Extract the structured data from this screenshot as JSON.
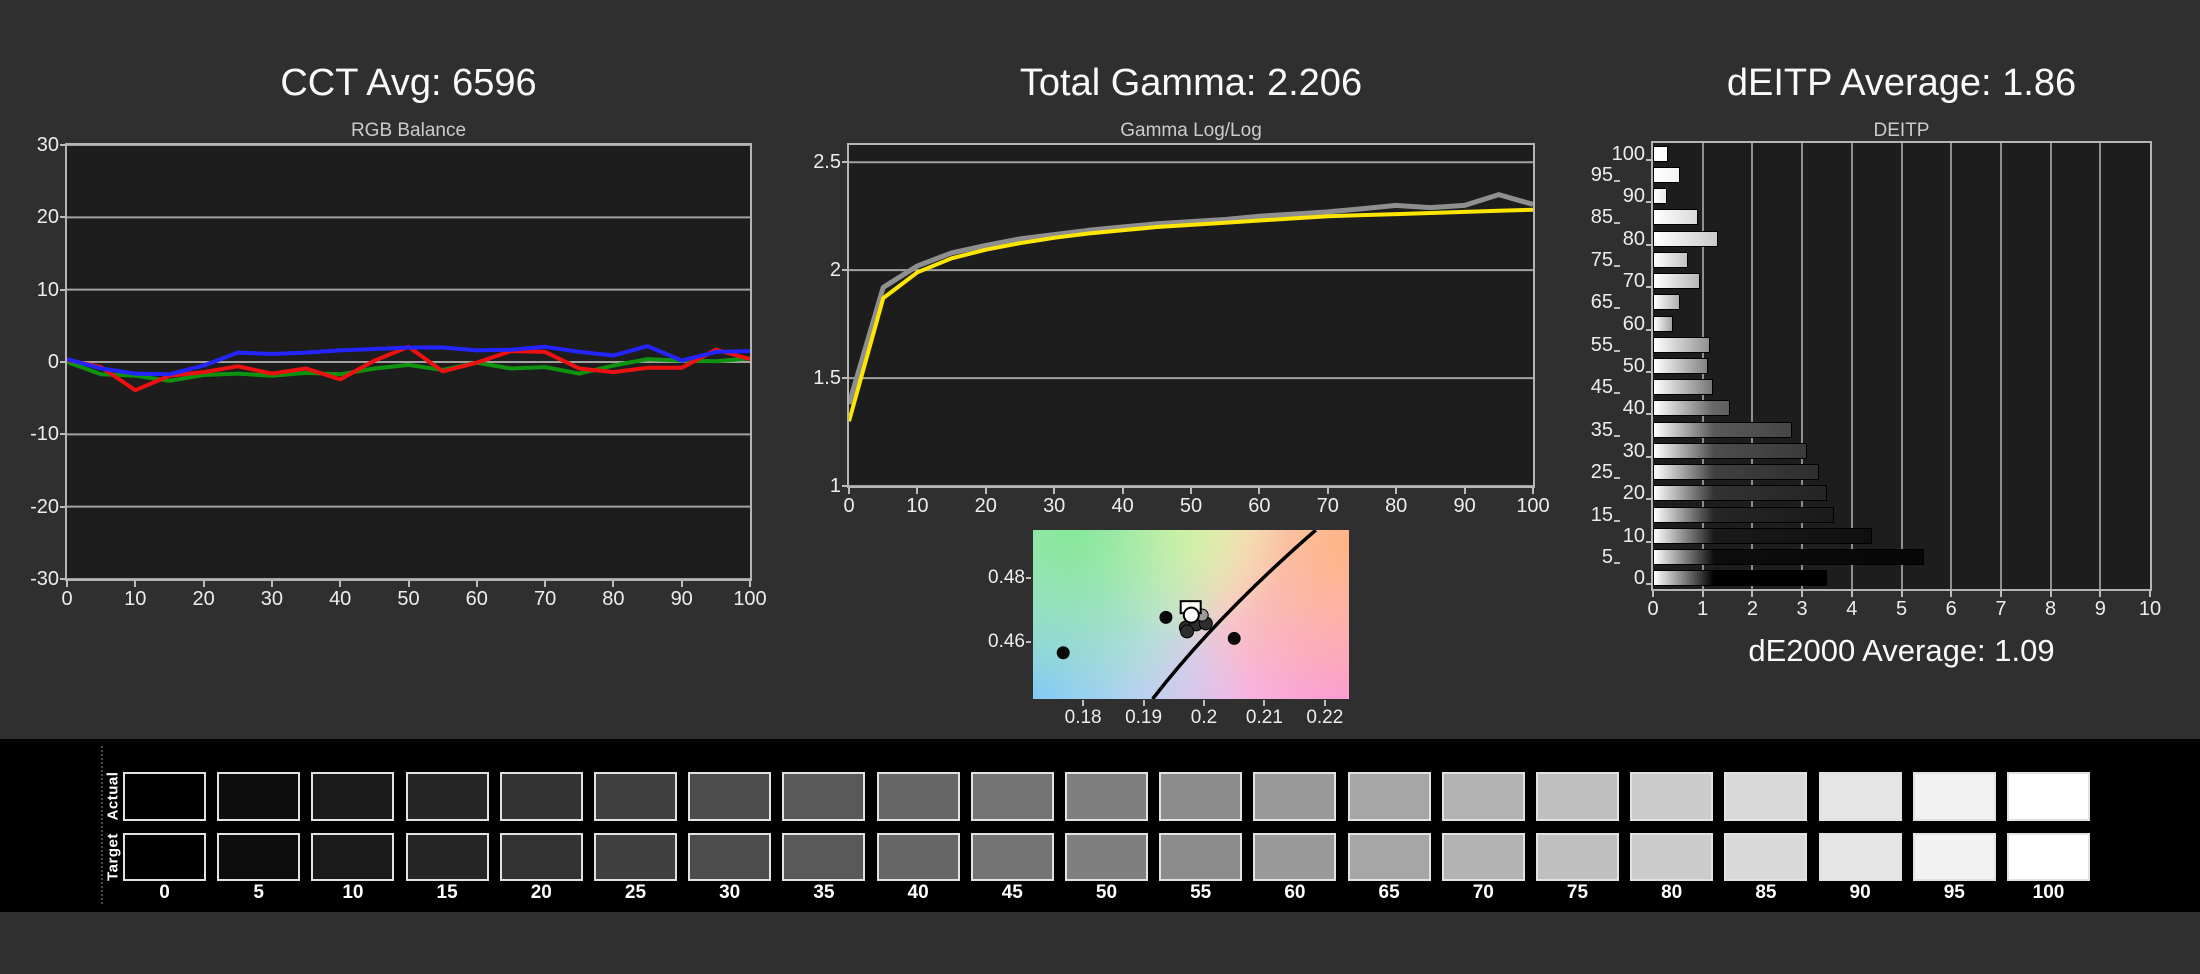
{
  "colors": {
    "background": "#2f2f2f",
    "plot_background": "#1d1d1d",
    "strip_background": "#000000",
    "grid": "#a2a2a2",
    "axis_text": "#ededed",
    "red_line": "#ee1111",
    "green_line": "#0d930d",
    "blue_line": "#2424ff",
    "target_yellow": "#ffe600",
    "measured_gray": "#8f8f8f"
  },
  "chart_data": [
    {
      "type": "line",
      "id": "rgb_balance",
      "title": "CCT Avg: 6596",
      "subtitle": "RGB Balance",
      "x": [
        0,
        5,
        10,
        15,
        20,
        25,
        30,
        35,
        40,
        45,
        50,
        55,
        60,
        65,
        70,
        75,
        80,
        85,
        90,
        95,
        100
      ],
      "series": [
        {
          "name": "Green",
          "color": "#0d930d",
          "width": 4,
          "values": [
            0.0,
            -1.7,
            -1.9,
            -2.6,
            -1.8,
            -1.6,
            -1.9,
            -1.5,
            -1.7,
            -0.9,
            -0.4,
            -1.1,
            -0.1,
            -0.9,
            -0.7,
            -1.6,
            -0.5,
            0.4,
            0.2,
            0.1,
            0.5
          ]
        },
        {
          "name": "Red",
          "color": "#ee1111",
          "width": 4,
          "values": [
            0.3,
            -0.7,
            -3.9,
            -1.9,
            -1.4,
            -0.6,
            -1.6,
            -0.9,
            -2.4,
            0.2,
            2.1,
            -1.3,
            -0.1,
            1.5,
            1.4,
            -0.9,
            -1.4,
            -0.8,
            -0.8,
            1.7,
            0.4
          ]
        },
        {
          "name": "Blue",
          "color": "#2424ff",
          "width": 4,
          "values": [
            0.4,
            -0.9,
            -1.6,
            -1.7,
            -0.5,
            1.3,
            1.1,
            1.3,
            1.6,
            1.8,
            2.0,
            2.0,
            1.6,
            1.7,
            2.1,
            1.4,
            0.9,
            2.2,
            0.2,
            1.4,
            1.5
          ]
        }
      ],
      "xlim": [
        0,
        100
      ],
      "ylim": [
        -30,
        30
      ],
      "yticks": [
        30,
        20,
        10,
        0,
        -10,
        -20,
        -30
      ],
      "xticks": [
        0,
        10,
        20,
        30,
        40,
        50,
        60,
        70,
        80,
        90,
        100
      ],
      "grid": "horizontal"
    },
    {
      "type": "line",
      "id": "gamma_loglog",
      "title": "Total Gamma: 2.206",
      "subtitle": "Gamma Log/Log",
      "x": [
        0,
        5,
        10,
        15,
        20,
        25,
        30,
        35,
        40,
        45,
        50,
        55,
        60,
        65,
        70,
        75,
        80,
        85,
        90,
        95,
        100
      ],
      "series": [
        {
          "name": "Measured",
          "color": "#8f8f8f",
          "width": 5,
          "values": [
            1.38,
            1.92,
            2.02,
            2.08,
            2.115,
            2.145,
            2.165,
            2.185,
            2.2,
            2.215,
            2.225,
            2.235,
            2.25,
            2.26,
            2.27,
            2.285,
            2.3,
            2.29,
            2.3,
            2.35,
            2.305
          ]
        },
        {
          "name": "Target",
          "color": "#ffe600",
          "width": 4,
          "values": [
            1.3,
            1.87,
            1.99,
            2.055,
            2.095,
            2.125,
            2.15,
            2.17,
            2.185,
            2.2,
            2.21,
            2.22,
            2.23,
            2.24,
            2.25,
            2.255,
            2.26,
            2.265,
            2.27,
            2.275,
            2.28
          ]
        }
      ],
      "xlim": [
        0,
        100
      ],
      "ylim": [
        1,
        2.58
      ],
      "yticks": [
        2.5,
        2,
        1.5,
        1
      ],
      "xticks": [
        0,
        10,
        20,
        30,
        40,
        50,
        60,
        70,
        80,
        90,
        100
      ],
      "grid": "horizontal"
    },
    {
      "type": "scatter",
      "id": "cie_chromaticity_detail",
      "xlim": [
        0.1717,
        0.224
      ],
      "ylim": [
        0.442,
        0.495
      ],
      "xticks": [
        0.18,
        0.19,
        0.2,
        0.21,
        0.22
      ],
      "yticks": [
        0.48,
        0.46
      ],
      "locus": [
        [
          0.1915,
          0.442
        ],
        [
          0.2019,
          0.4676
        ],
        [
          0.2185,
          0.495
        ]
      ],
      "points": [
        [
          0.1767,
          0.4565
        ],
        [
          0.1937,
          0.4676
        ],
        [
          0.205,
          0.461
        ]
      ],
      "cluster": {
        "dark_dots": [
          [
            0.197,
            0.4644
          ],
          [
            0.1987,
            0.4654
          ],
          [
            0.1972,
            0.4632
          ],
          [
            0.2003,
            0.4657
          ]
        ],
        "gray_dots": [
          [
            0.1997,
            0.4683
          ]
        ],
        "white_dot": [
          0.1979,
          0.4683
        ],
        "target_box": [
          0.1978,
          0.4708
        ]
      }
    },
    {
      "type": "bar",
      "id": "deitp",
      "orientation": "horizontal",
      "title": "dEITP Average: 1.86",
      "subtitle": "DEITP",
      "categories": [
        100,
        95,
        90,
        85,
        80,
        75,
        70,
        65,
        60,
        55,
        50,
        45,
        40,
        35,
        30,
        25,
        20,
        15,
        10,
        5,
        0
      ],
      "values": [
        0.3,
        0.55,
        0.28,
        0.9,
        1.3,
        0.7,
        0.95,
        0.55,
        0.4,
        1.15,
        1.1,
        1.2,
        1.55,
        2.8,
        3.1,
        3.35,
        3.5,
        3.65,
        4.4,
        5.45,
        3.5
      ],
      "xlim": [
        0,
        10
      ],
      "xticks": [
        0,
        1,
        2,
        3,
        4,
        5,
        6,
        7,
        8,
        9,
        10
      ],
      "footer": "dE2000 Average: 1.09"
    },
    {
      "type": "table",
      "id": "grayscale_ramp",
      "rows": [
        "Actual",
        "Target"
      ],
      "levels": [
        0,
        5,
        10,
        15,
        20,
        25,
        30,
        35,
        40,
        45,
        50,
        55,
        60,
        65,
        70,
        75,
        80,
        85,
        90,
        95,
        100
      ]
    }
  ]
}
